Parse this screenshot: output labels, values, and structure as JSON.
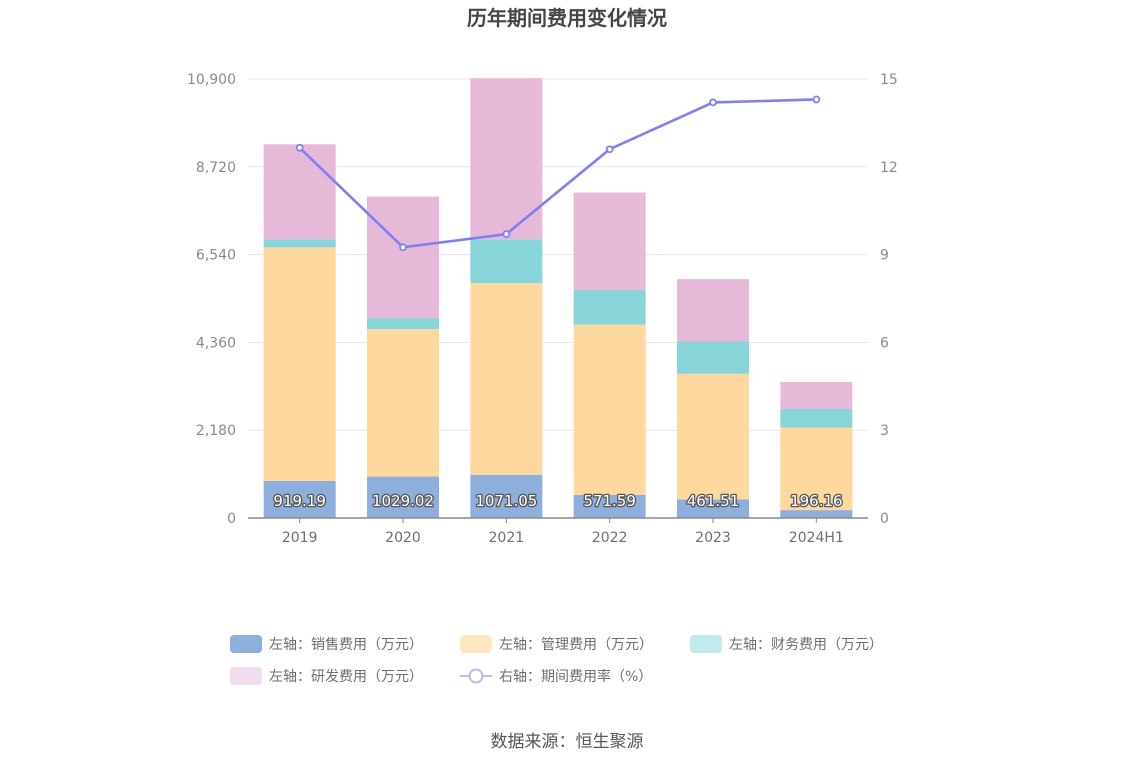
{
  "chart_data": {
    "type": "bar",
    "stacked": true,
    "title": "历年期间费用变化情况",
    "categories": [
      "2019",
      "2020",
      "2021",
      "2022",
      "2023",
      "2024H1"
    ],
    "left_axis": {
      "min": 0,
      "max": 10900,
      "ticks": [
        "0",
        "2,180",
        "4,360",
        "6,540",
        "8,720",
        "10,900"
      ]
    },
    "right_axis": {
      "min": 0,
      "max": 15,
      "ticks": [
        "0",
        "3",
        "6",
        "9",
        "12",
        "15"
      ]
    },
    "series": [
      {
        "name": "左轴：销售费用（万元）",
        "axis": "left",
        "type": "bar",
        "color": "#8eaedb",
        "values": [
          919.19,
          1029.02,
          1071.05,
          571.59,
          461.51,
          196.16
        ],
        "labels": [
          "919.19",
          "1029.02",
          "1071.05",
          "571.59",
          "461.51",
          "196.16"
        ]
      },
      {
        "name": "左轴：管理费用（万元）",
        "axis": "left",
        "type": "bar",
        "color": "#fed89e",
        "values": [
          5800,
          3660,
          4760,
          4230,
          3120,
          2050
        ]
      },
      {
        "name": "左轴：财务费用（万元）",
        "axis": "left",
        "type": "bar",
        "color": "#87d5d9",
        "values": [
          200,
          280,
          1090,
          860,
          800,
          460
        ]
      },
      {
        "name": "左轴：研发费用（万元）",
        "axis": "left",
        "type": "bar",
        "color": "#e7b9d9",
        "values": [
          2360,
          3010,
          4000,
          2420,
          1550,
          670
        ]
      },
      {
        "name": "右轴：期间费用率（%）",
        "axis": "right",
        "type": "line",
        "color": "#7f7ff0",
        "values": [
          12.65,
          9.25,
          9.7,
          12.6,
          14.2,
          14.3
        ]
      }
    ],
    "legend_position": "bottom"
  },
  "source": "数据来源：恒生聚源"
}
